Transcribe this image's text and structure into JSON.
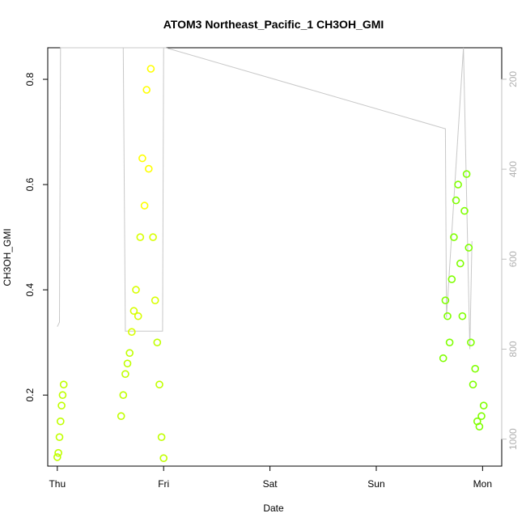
{
  "chart_data": {
    "type": "scatter",
    "title": "ATOM3 Northeast_Pacific_1 CH3OH_GMI",
    "xlabel": "Date",
    "ylabel": "CH3OH_GMI",
    "x_ticks": [
      "Thu",
      "Fri",
      "Sat",
      "Sun",
      "Mon"
    ],
    "x_tick_values": [
      0,
      1,
      2,
      3,
      4
    ],
    "xlim": [
      -0.09,
      4.18
    ],
    "ylim": [
      0.065,
      0.86
    ],
    "y_ticks": [
      0.2,
      0.4,
      0.6,
      0.8
    ],
    "y2_ticks": [
      200,
      400,
      600,
      800,
      1000
    ],
    "y2_lim": [
      1060,
      130
    ],
    "y2_color": "#c0c0c0",
    "grid": false,
    "legend": "none",
    "colors": {
      "low": "#c0ff00",
      "mid": "#d8ff00",
      "high": "#ffff00",
      "green": "#7fff00",
      "pressure_line": "#c8c8c8"
    },
    "pressure_series": {
      "x": [
        0.0,
        0.02,
        0.03,
        1.0,
        0.62,
        0.64,
        0.99,
        1.0,
        1.02,
        3.65,
        3.66,
        3.82,
        3.88,
        3.9
      ],
      "y": [
        750,
        740,
        130,
        130,
        130,
        760,
        760,
        130,
        130,
        310,
        730,
        130,
        800,
        560
      ]
    },
    "series": [
      {
        "x": [
          0.0,
          0.01,
          0.02,
          0.03,
          0.04,
          0.05,
          0.06
        ],
        "y": [
          0.082,
          0.09,
          0.12,
          0.15,
          0.18,
          0.2,
          0.22
        ]
      },
      {
        "x": [
          0.6,
          0.62,
          0.64,
          0.66,
          0.68,
          0.7,
          0.72,
          0.74,
          0.76,
          0.78,
          0.8,
          0.82,
          0.84,
          0.86,
          0.88,
          0.9,
          0.92,
          0.94,
          0.96,
          0.98,
          1.0
        ],
        "y": [
          0.16,
          0.2,
          0.24,
          0.26,
          0.28,
          0.32,
          0.36,
          0.4,
          0.35,
          0.5,
          0.65,
          0.56,
          0.78,
          0.63,
          0.82,
          0.5,
          0.38,
          0.3,
          0.22,
          0.12,
          0.08
        ]
      },
      {
        "x": [
          3.63,
          3.65,
          3.67,
          3.69,
          3.71,
          3.73,
          3.75,
          3.77,
          3.79,
          3.81,
          3.83,
          3.85,
          3.87,
          3.89,
          3.91,
          3.93,
          3.95,
          3.97,
          3.99,
          4.01
        ],
        "y": [
          0.27,
          0.38,
          0.35,
          0.3,
          0.42,
          0.5,
          0.57,
          0.6,
          0.45,
          0.35,
          0.55,
          0.62,
          0.48,
          0.3,
          0.22,
          0.25,
          0.15,
          0.14,
          0.16,
          0.18
        ]
      }
    ]
  }
}
